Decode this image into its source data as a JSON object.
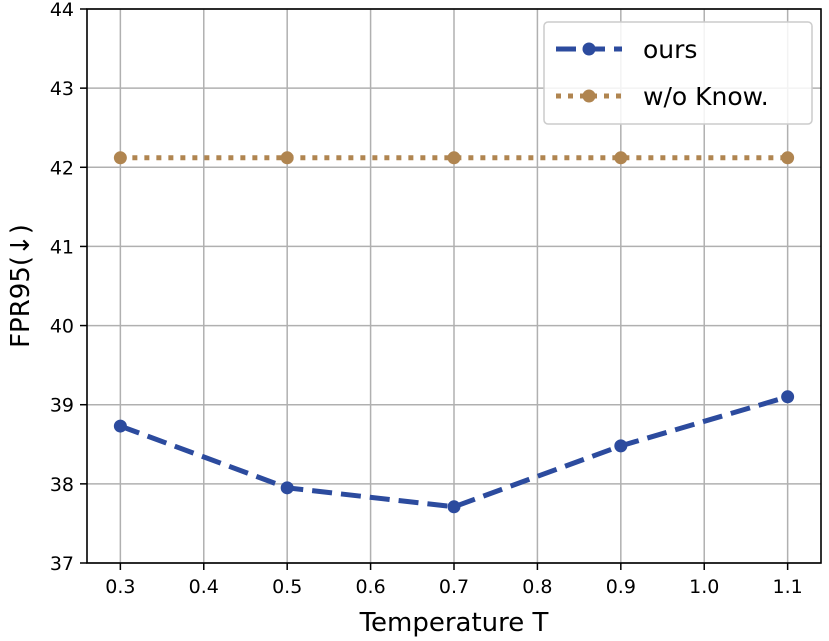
{
  "chart_data": {
    "type": "line",
    "x": [
      0.3,
      0.5,
      0.7,
      0.9,
      1.1
    ],
    "xlabel": "Temperature T",
    "ylabel": "FPR95(↓)",
    "xlim": [
      0.26,
      1.14
    ],
    "ylim": [
      37,
      44
    ],
    "xticks": [
      "0.3",
      "0.4",
      "0.5",
      "0.6",
      "0.7",
      "0.8",
      "0.9",
      "1.0",
      "1.1"
    ],
    "yticks": [
      "37",
      "38",
      "39",
      "40",
      "41",
      "42",
      "43",
      "44"
    ],
    "grid": true,
    "legend_position": "top-right",
    "series": [
      {
        "name": "ours",
        "values": [
          38.73,
          37.95,
          37.71,
          38.48,
          39.1
        ],
        "color": "#2c4b9e",
        "style": "dashed"
      },
      {
        "name": "w/o Know.",
        "values": [
          42.12,
          42.12,
          42.12,
          42.12,
          42.12
        ],
        "color": "#b08550",
        "style": "dotted"
      }
    ]
  }
}
